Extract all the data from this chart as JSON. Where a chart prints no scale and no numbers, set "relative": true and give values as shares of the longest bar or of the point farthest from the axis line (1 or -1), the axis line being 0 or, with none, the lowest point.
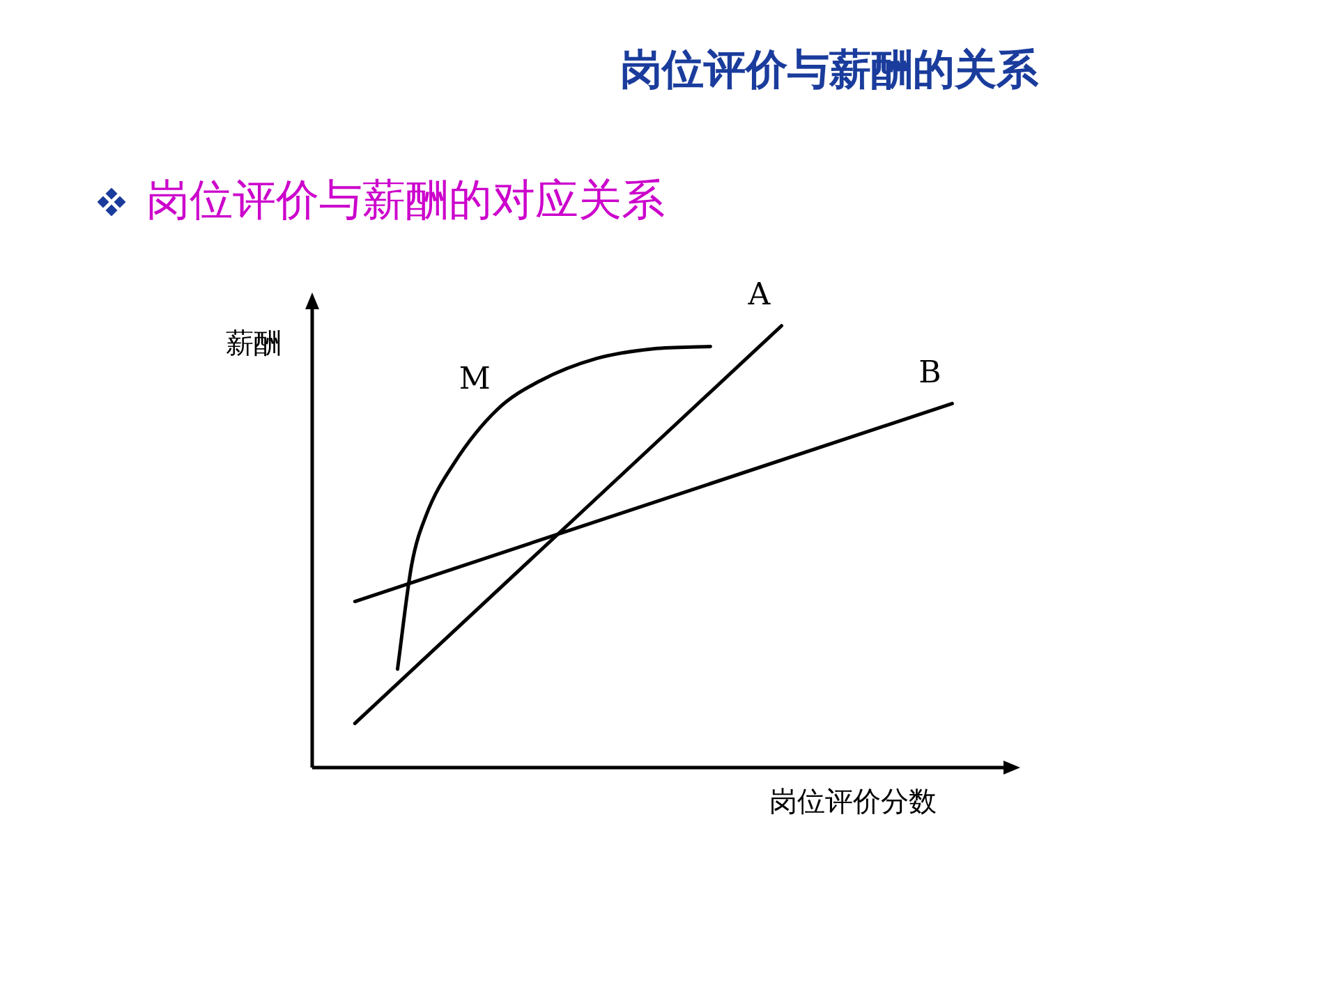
{
  "chart_data": {
    "type": "line",
    "title": "岗位评价与薪酬的关系",
    "subtitle": "岗位评价与薪酬的对应关系",
    "xlabel": "岗位评价分数",
    "ylabel": "薪酬",
    "relative": true,
    "legend": false,
    "marker": "none",
    "line_style": "solid",
    "categories": [
      null,
      null,
      null,
      null,
      null,
      null,
      null,
      null,
      null,
      null,
      null,
      null,
      null,
      null,
      null,
      null,
      null,
      null,
      null,
      null,
      null,
      null,
      null,
      null,
      null,
      null,
      null,
      null,
      null,
      null,
      null,
      null,
      null,
      null,
      null,
      null,
      null,
      null,
      null,
      null,
      null,
      null,
      null,
      null,
      null,
      null,
      null,
      null,
      null,
      null
    ],
    "series": [
      {
        "name": "A",
        "color": "#000000",
        "values": [
          null,
          null,
          null,
          0.1,
          null,
          null,
          null,
          null,
          null,
          null,
          null,
          null,
          null,
          null,
          null,
          null,
          null,
          null,
          null,
          null,
          null,
          null,
          null,
          null,
          null,
          null,
          null,
          null,
          null,
          null,
          null,
          null,
          null,
          1.0,
          null,
          null,
          null,
          null,
          null,
          null,
          null,
          null,
          null,
          null,
          null,
          null,
          null,
          null,
          null,
          null
        ]
      },
      {
        "name": "B",
        "color": "#000000",
        "values": [
          null,
          null,
          null,
          0.376,
          null,
          null,
          null,
          null,
          null,
          null,
          null,
          null,
          null,
          null,
          null,
          null,
          null,
          null,
          null,
          null,
          null,
          null,
          null,
          null,
          null,
          null,
          null,
          null,
          null,
          null,
          null,
          null,
          null,
          null,
          null,
          null,
          null,
          null,
          null,
          null,
          null,
          null,
          null,
          null,
          null,
          0.824,
          null,
          null,
          null,
          null
        ]
      },
      {
        "name": "M",
        "color": "#000000",
        "values": [
          null,
          null,
          null,
          null,
          null,
          null,
          0.223,
          0.46,
          0.57,
          null,
          0.69,
          null,
          null,
          0.81,
          null,
          null,
          0.875,
          null,
          null,
          null,
          0.926,
          null,
          null,
          null,
          0.948,
          null,
          null,
          null,
          0.953,
          null,
          null,
          null,
          null,
          null,
          null,
          null,
          null,
          null,
          null,
          null,
          null,
          null,
          null,
          null,
          null,
          null,
          null,
          null,
          null,
          null
        ]
      }
    ]
  }
}
